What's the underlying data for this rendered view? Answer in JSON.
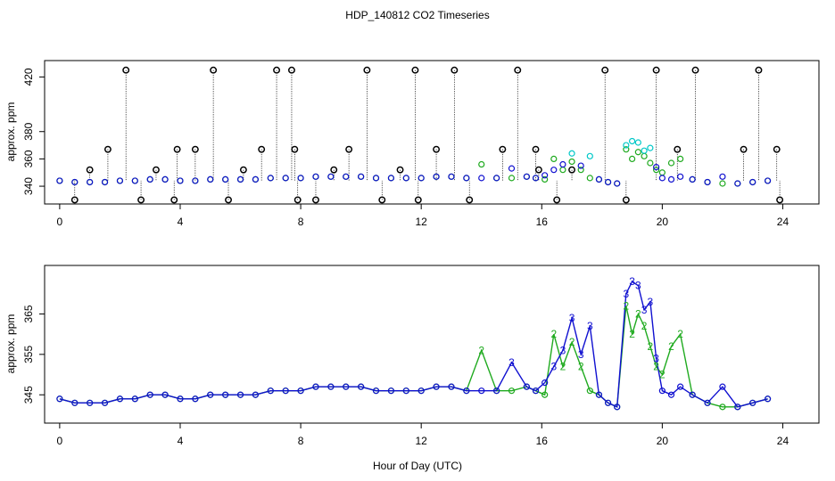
{
  "title": "HDP_140812  CO2 Timeseries",
  "xlabel": "Hour of Day (UTC)",
  "colors": {
    "series2": "#1faa1f",
    "series3": "#1010d0",
    "highlight": "#00c8c8",
    "outlier": "#000000"
  },
  "chart_data": [
    {
      "type": "scatter",
      "ylabel": "approx. ppm",
      "xlim": [
        -0.5,
        25.2
      ],
      "ylim": [
        327,
        432
      ],
      "x_ticks": [
        "0",
        "4",
        "8",
        "12",
        "16",
        "20",
        "24"
      ],
      "y_ticks": [
        "340",
        "360",
        "380",
        "420"
      ],
      "grid": false,
      "series": [
        {
          "name": "2",
          "x": [
            0.0,
            0.5,
            1.0,
            1.5,
            2.0,
            2.5,
            3.0,
            3.5,
            4.0,
            4.5,
            5.0,
            5.5,
            6.0,
            6.5,
            7.0,
            7.5,
            8.0,
            8.5,
            9.0,
            9.5,
            10.0,
            10.5,
            11.0,
            11.5,
            12.0,
            12.5,
            13.0,
            13.5,
            14.0,
            14.5,
            15.0,
            15.5,
            15.8,
            16.1,
            16.4,
            16.7,
            17.0,
            17.3,
            17.6,
            17.9,
            18.2,
            18.5,
            18.8,
            19.0,
            19.2,
            19.4,
            19.6,
            19.8,
            20.0,
            20.3,
            20.6,
            21.0,
            21.5,
            22.0,
            22.5,
            23.0,
            23.5
          ],
          "y": [
            344,
            343,
            343,
            343,
            344,
            344,
            345,
            345,
            344,
            344,
            345,
            345,
            345,
            345,
            346,
            346,
            346,
            347,
            347,
            347,
            347,
            346,
            346,
            346,
            346,
            347,
            347,
            346,
            356,
            346,
            346,
            347,
            346,
            345,
            360,
            352,
            358,
            352,
            346,
            345,
            343,
            342,
            367,
            360,
            365,
            362,
            357,
            352,
            350,
            357,
            360,
            345,
            343,
            342,
            342,
            343,
            344
          ]
        },
        {
          "name": "3",
          "x": [
            0.0,
            0.5,
            1.0,
            1.5,
            2.0,
            2.5,
            3.0,
            3.5,
            4.0,
            4.5,
            5.0,
            5.5,
            6.0,
            6.5,
            7.0,
            7.5,
            8.0,
            8.5,
            9.0,
            9.5,
            10.0,
            10.5,
            11.0,
            11.5,
            12.0,
            12.5,
            13.0,
            13.5,
            14.0,
            14.5,
            15.0,
            15.5,
            15.8,
            16.1,
            16.4,
            16.7,
            17.0,
            17.3,
            17.6,
            17.9,
            18.2,
            18.5,
            18.8,
            19.0,
            19.2,
            19.4,
            19.6,
            19.8,
            20.0,
            20.3,
            20.6,
            21.0,
            21.5,
            22.0,
            22.5,
            23.0,
            23.5
          ],
          "y": [
            344,
            343,
            343,
            343,
            344,
            344,
            345,
            345,
            344,
            344,
            345,
            345,
            345,
            345,
            346,
            346,
            346,
            347,
            347,
            347,
            347,
            346,
            346,
            346,
            346,
            347,
            347,
            346,
            346,
            346,
            353,
            347,
            346,
            348,
            352,
            356,
            364,
            355,
            362,
            345,
            343,
            342,
            370,
            373,
            372,
            366,
            368,
            354,
            346,
            345,
            347,
            345,
            343,
            347,
            342,
            343,
            344
          ]
        }
      ],
      "outliers": {
        "x": [
          0.5,
          1.0,
          1.6,
          2.2,
          2.7,
          3.2,
          3.8,
          3.9,
          4.5,
          5.1,
          5.6,
          6.1,
          6.7,
          7.2,
          7.7,
          7.8,
          7.9,
          8.5,
          9.1,
          9.6,
          10.2,
          10.7,
          11.3,
          11.8,
          11.9,
          12.5,
          13.1,
          13.6,
          14.7,
          15.2,
          15.8,
          15.9,
          16.5,
          17.0,
          18.1,
          18.8,
          19.8,
          20.5,
          21.1,
          22.7,
          23.2,
          23.8,
          23.9
        ],
        "y": [
          330,
          352,
          367,
          425,
          330,
          352,
          330,
          367,
          367,
          425,
          330,
          352,
          367,
          425,
          425,
          367,
          330,
          330,
          352,
          367,
          425,
          330,
          352,
          425,
          330,
          367,
          425,
          330,
          367,
          425,
          367,
          352,
          330,
          352,
          425,
          330,
          425,
          367,
          425,
          367,
          425,
          367,
          330
        ]
      }
    },
    {
      "type": "line",
      "ylabel": "approx. ppm",
      "xlim": [
        -0.5,
        25.2
      ],
      "ylim": [
        338,
        377
      ],
      "x_ticks": [
        "0",
        "4",
        "8",
        "12",
        "16",
        "20",
        "24"
      ],
      "y_ticks": [
        "345",
        "355",
        "365"
      ],
      "grid": false,
      "series": [
        {
          "name": "2",
          "label": "2",
          "x": [
            0.0,
            0.5,
            1.0,
            1.5,
            2.0,
            2.5,
            3.0,
            3.5,
            4.0,
            4.5,
            5.0,
            5.5,
            6.0,
            6.5,
            7.0,
            7.5,
            8.0,
            8.5,
            9.0,
            9.5,
            10.0,
            10.5,
            11.0,
            11.5,
            12.0,
            12.5,
            13.0,
            13.5,
            14.0,
            14.5,
            15.0,
            15.5,
            15.8,
            16.1,
            16.4,
            16.7,
            17.0,
            17.3,
            17.6,
            17.9,
            18.2,
            18.5,
            18.8,
            19.0,
            19.2,
            19.4,
            19.6,
            19.8,
            20.0,
            20.3,
            20.6,
            21.0,
            21.5,
            22.0,
            22.5,
            23.0,
            23.5
          ],
          "y": [
            344,
            343,
            343,
            343,
            344,
            344,
            345,
            345,
            344,
            344,
            345,
            345,
            345,
            345,
            346,
            346,
            346,
            347,
            347,
            347,
            347,
            346,
            346,
            346,
            346,
            347,
            347,
            346,
            356,
            346,
            346,
            347,
            346,
            345,
            360,
            352,
            358,
            352,
            346,
            345,
            343,
            342,
            367,
            360,
            365,
            362,
            357,
            352,
            350,
            357,
            360,
            345,
            343,
            342,
            342,
            343,
            344
          ]
        },
        {
          "name": "3",
          "label": "3",
          "x": [
            0.0,
            0.5,
            1.0,
            1.5,
            2.0,
            2.5,
            3.0,
            3.5,
            4.0,
            4.5,
            5.0,
            5.5,
            6.0,
            6.5,
            7.0,
            7.5,
            8.0,
            8.5,
            9.0,
            9.5,
            10.0,
            10.5,
            11.0,
            11.5,
            12.0,
            12.5,
            13.0,
            13.5,
            14.0,
            14.5,
            15.0,
            15.5,
            15.8,
            16.1,
            16.4,
            16.7,
            17.0,
            17.3,
            17.6,
            17.9,
            18.2,
            18.5,
            18.8,
            19.0,
            19.2,
            19.4,
            19.6,
            19.8,
            20.0,
            20.3,
            20.6,
            21.0,
            21.5,
            22.0,
            22.5,
            23.0,
            23.5
          ],
          "y": [
            344,
            343,
            343,
            343,
            344,
            344,
            345,
            345,
            344,
            344,
            345,
            345,
            345,
            345,
            346,
            346,
            346,
            347,
            347,
            347,
            347,
            346,
            346,
            346,
            346,
            347,
            347,
            346,
            346,
            346,
            353,
            347,
            346,
            348,
            352,
            356,
            364,
            355,
            362,
            345,
            343,
            342,
            370,
            373,
            372,
            366,
            368,
            354,
            346,
            345,
            347,
            345,
            343,
            347,
            342,
            343,
            344
          ]
        }
      ]
    }
  ]
}
